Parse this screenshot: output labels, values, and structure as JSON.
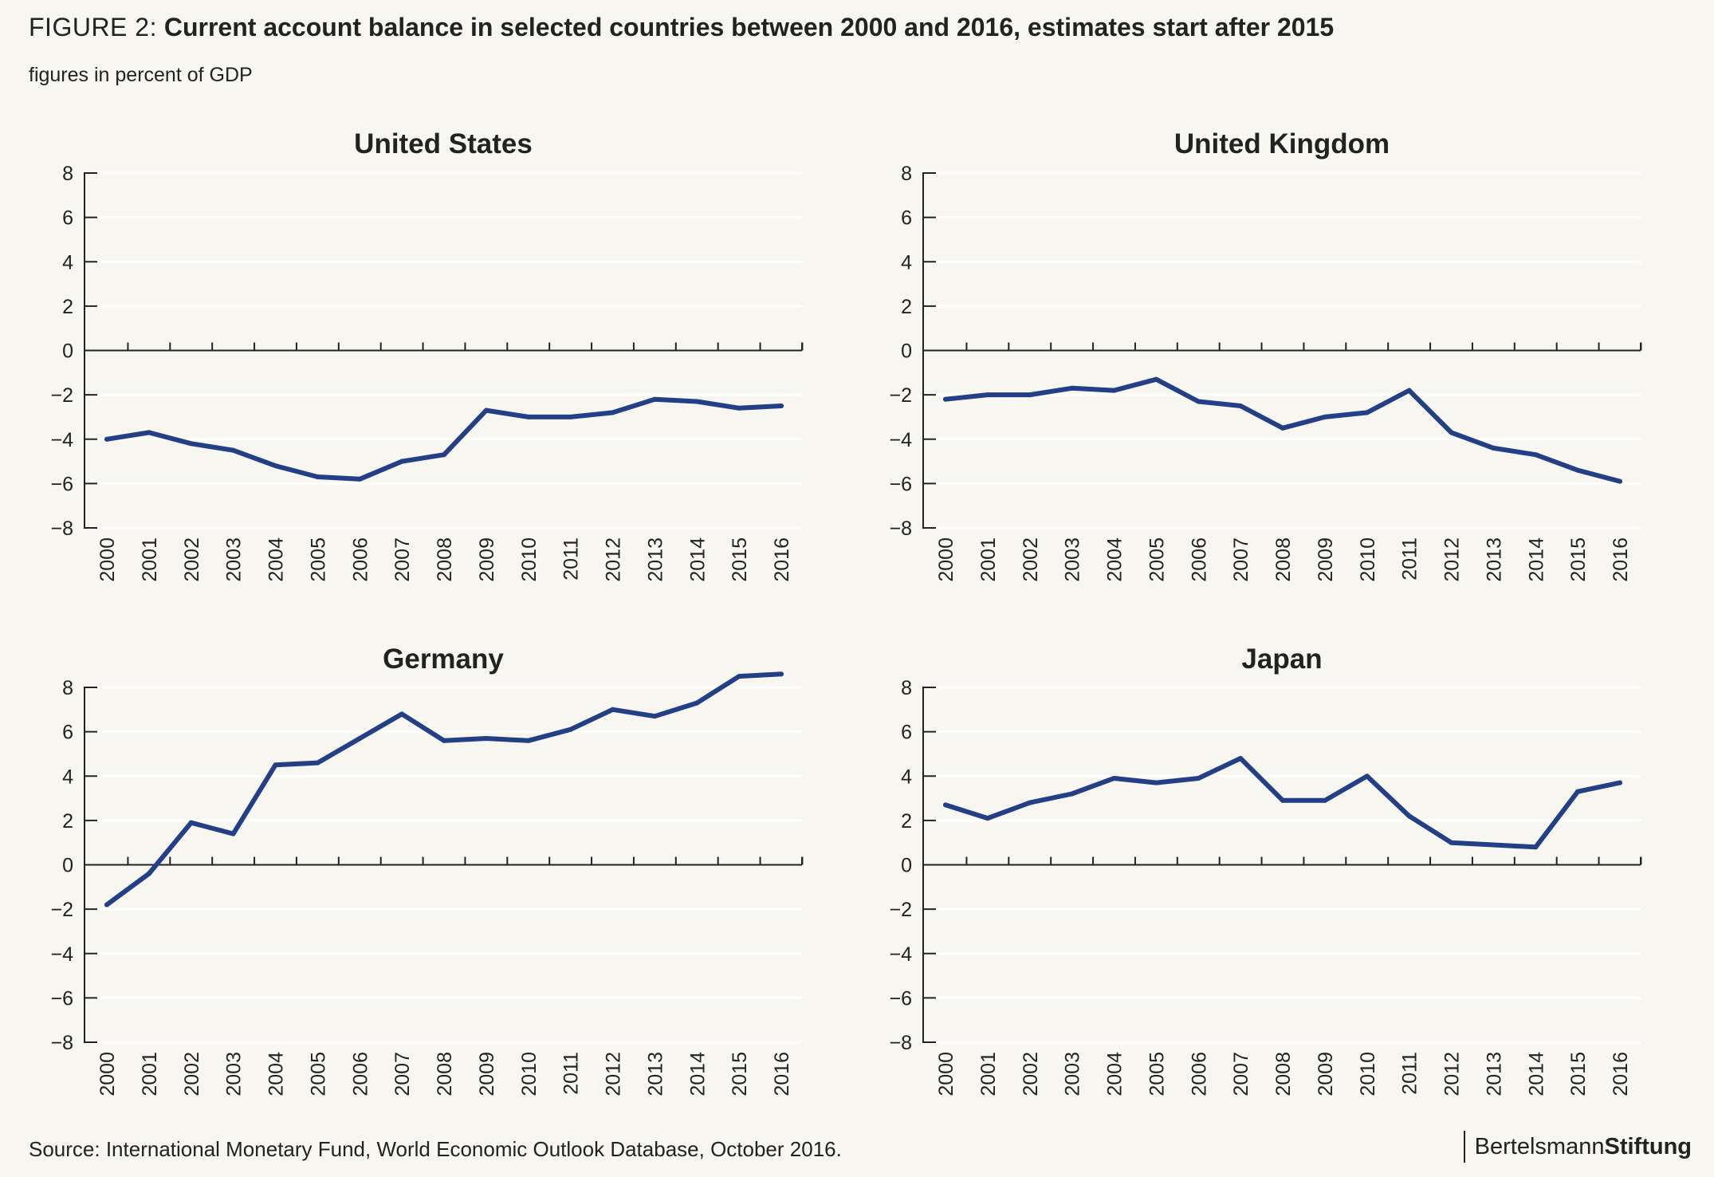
{
  "figure": {
    "label": "FIGURE 2:",
    "title": "Current account balance in selected countries between 2000 and 2016, estimates start after 2015",
    "subtitle": "figures in percent of GDP",
    "source": "Source: International Monetary Fund, World Economic Outlook Database, October 2016.",
    "brand_part1": "Bertelsmann",
    "brand_part2": "Stiftung"
  },
  "colors": {
    "line": "#233f85",
    "grid": "#ffffff",
    "axis": "#222222",
    "background": "#f7f6f0"
  },
  "chart_data": [
    {
      "type": "line",
      "title": "United States",
      "x": [
        "2000",
        "2001",
        "2002",
        "2003",
        "2004",
        "2005",
        "2006",
        "2007",
        "2008",
        "2009",
        "2010",
        "2011",
        "2012",
        "2013",
        "2014",
        "2015",
        "2016"
      ],
      "values": [
        -4.0,
        -3.7,
        -4.2,
        -4.5,
        -5.2,
        -5.7,
        -5.8,
        -5.0,
        -4.7,
        -2.7,
        -3.0,
        -3.0,
        -2.8,
        -2.2,
        -2.3,
        -2.6,
        -2.5
      ],
      "yticks": [
        "8",
        "6",
        "4",
        "2",
        "0",
        "−2",
        "−4",
        "−6",
        "−8"
      ],
      "ylim": [
        -8,
        8
      ],
      "grid": true
    },
    {
      "type": "line",
      "title": "United Kingdom",
      "x": [
        "2000",
        "2001",
        "2002",
        "2003",
        "2004",
        "2005",
        "2006",
        "2007",
        "2008",
        "2009",
        "2010",
        "2011",
        "2012",
        "2013",
        "2014",
        "2015",
        "2016"
      ],
      "values": [
        -2.2,
        -2.0,
        -2.0,
        -1.7,
        -1.8,
        -1.3,
        -2.3,
        -2.5,
        -3.5,
        -3.0,
        -2.8,
        -1.8,
        -3.7,
        -4.4,
        -4.7,
        -5.4,
        -5.9
      ],
      "yticks": [
        "8",
        "6",
        "4",
        "2",
        "0",
        "−2",
        "−4",
        "−6",
        "−8"
      ],
      "ylim": [
        -8,
        8
      ],
      "grid": true
    },
    {
      "type": "line",
      "title": "Germany",
      "x": [
        "2000",
        "2001",
        "2002",
        "2003",
        "2004",
        "2005",
        "2006",
        "2007",
        "2008",
        "2009",
        "2010",
        "2011",
        "2012",
        "2013",
        "2014",
        "2015",
        "2016"
      ],
      "values": [
        -1.8,
        -0.4,
        1.9,
        1.4,
        4.5,
        4.6,
        5.7,
        6.8,
        5.6,
        5.7,
        5.6,
        6.1,
        7.0,
        6.7,
        7.3,
        8.5,
        8.6
      ],
      "yticks": [
        "8",
        "6",
        "4",
        "2",
        "0",
        "−2",
        "−4",
        "−6",
        "−8"
      ],
      "ylim": [
        -8,
        8
      ],
      "grid": true
    },
    {
      "type": "line",
      "title": "Japan",
      "x": [
        "2000",
        "2001",
        "2002",
        "2003",
        "2004",
        "2005",
        "2006",
        "2007",
        "2008",
        "2009",
        "2010",
        "2011",
        "2012",
        "2013",
        "2014",
        "2015",
        "2016"
      ],
      "values": [
        2.7,
        2.1,
        2.8,
        3.2,
        3.9,
        3.7,
        3.9,
        4.8,
        2.9,
        2.9,
        4.0,
        2.2,
        1.0,
        0.9,
        0.8,
        3.3,
        3.7
      ],
      "yticks": [
        "8",
        "6",
        "4",
        "2",
        "0",
        "−2",
        "−4",
        "−6",
        "−8"
      ],
      "ylim": [
        -8,
        8
      ],
      "grid": true
    }
  ]
}
